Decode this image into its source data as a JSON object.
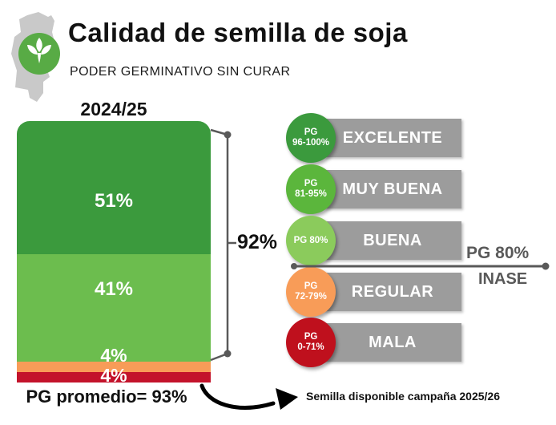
{
  "header": {
    "title": "Calidad de semilla de soja",
    "subtitle": "PODER GERMINATIVO SIN CURAR"
  },
  "chart_data": {
    "type": "bar",
    "variant": "stacked-column",
    "title": "Calidad de semilla de soja",
    "subtitle": "PODER GERMINATIVO SIN CURAR",
    "categories": [
      "2024/25"
    ],
    "unit": "%",
    "ylim": [
      0,
      100
    ],
    "series": [
      {
        "name": "EXCELENTE",
        "pg_range": "PG 96-100%",
        "values": [
          51
        ],
        "color": "#3B9A3D"
      },
      {
        "name": "MUY BUENA",
        "pg_range": "PG 81-95%",
        "values": [
          41
        ],
        "color": "#6CBD4E"
      },
      {
        "name": "REGULAR",
        "pg_range": "PG 72-79%",
        "values": [
          4
        ],
        "color": "#F89C58"
      },
      {
        "name": "MALA",
        "pg_range": "PG 0-71%",
        "values": [
          4
        ],
        "color": "#C3132B"
      }
    ],
    "annotations": {
      "bracket_sum_label": "92%",
      "average_label": "PG promedio= 93%",
      "threshold_label": "PG 80% INASE",
      "footnote": "Semilla disponible campaña 2025/26"
    },
    "legend_position": "right"
  },
  "bar_panel": {
    "category": "2024/25",
    "bracket_label": "92%",
    "average": "PG promedio= 93%"
  },
  "legend": {
    "bar_color": "#9C9C9C",
    "items": [
      {
        "badge_line1": "PG",
        "badge_line2": "96-100%",
        "label": "EXCELENTE",
        "color": "#3B9A3D"
      },
      {
        "badge_line1": "PG",
        "badge_line2": "81-95%",
        "label": "MUY BUENA",
        "color": "#5BB63C"
      },
      {
        "badge_line1": "PG 80%",
        "badge_line2": "",
        "label": "BUENA",
        "color": "#8BCB5C"
      },
      {
        "badge_line1": "PG",
        "badge_line2": "72-79%",
        "label": "REGULAR",
        "color": "#F89C58"
      },
      {
        "badge_line1": "PG",
        "badge_line2": "0-71%",
        "label": "MALA",
        "color": "#BF101D"
      }
    ]
  },
  "threshold": {
    "line1": "PG 80%",
    "line2": "INASE"
  },
  "footer": {
    "note": "Semilla disponible campaña 2025/26"
  },
  "colors": {
    "annotation_gray": "#595959",
    "arrow_black": "#000000",
    "logo_map_gray": "#C9C9C9",
    "logo_circle_green": "#58AB45"
  }
}
